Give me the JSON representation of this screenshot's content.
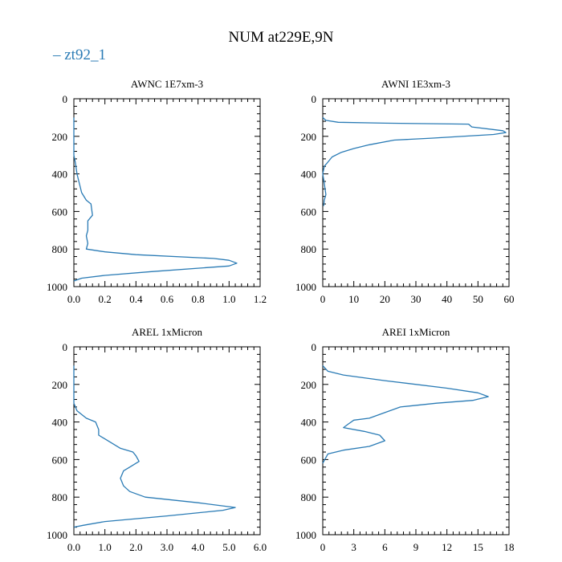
{
  "title": "NUM at229E,9N",
  "legend": {
    "label": "zt92_1",
    "color": "#2a7bb5"
  },
  "chart_data": [
    {
      "type": "line",
      "title": "AWNC  1E7xm-3",
      "xlim": [
        0,
        1.2
      ],
      "ylim": [
        1000,
        0
      ],
      "xticks": [
        0,
        0.2,
        0.4,
        0.6,
        0.8,
        1.0,
        1.2
      ],
      "xtick_labels": [
        "0.0",
        "0.2",
        "0.4",
        "0.6",
        "0.8",
        "1.0",
        "1.2"
      ],
      "yticks": [
        0,
        200,
        400,
        600,
        800,
        1000
      ],
      "ytick_labels": [
        "0",
        "200",
        "400",
        "600",
        "800",
        "1000"
      ],
      "series": [
        {
          "x": [
            0,
            0,
            0.01,
            0.02,
            0.05,
            0.08,
            0.11,
            0.12,
            0.09,
            0.09,
            0.08,
            0.09,
            0.08,
            0.2,
            0.4,
            0.9,
            1.0,
            1.05,
            1.0,
            0.5,
            0.2,
            0.05,
            0
          ],
          "y": [
            100,
            300,
            340,
            400,
            500,
            540,
            560,
            620,
            650,
            700,
            730,
            770,
            800,
            815,
            830,
            850,
            860,
            875,
            890,
            920,
            940,
            955,
            970
          ]
        }
      ]
    },
    {
      "type": "line",
      "title": "AWNI  1E3xm-3",
      "xlim": [
        0,
        60
      ],
      "ylim": [
        1000,
        0
      ],
      "xticks": [
        0,
        10,
        20,
        30,
        40,
        50,
        60
      ],
      "xtick_labels": [
        "0",
        "10",
        "20",
        "30",
        "40",
        "50",
        "60"
      ],
      "yticks": [
        0,
        200,
        400,
        600,
        800,
        1000
      ],
      "ytick_labels": [
        "0",
        "200",
        "400",
        "600",
        "800",
        "1000"
      ],
      "series": [
        {
          "x": [
            0,
            1,
            5,
            20,
            47,
            48,
            58,
            59,
            55,
            35,
            23,
            15,
            10,
            6,
            3,
            1.5,
            0.5,
            0,
            0.5,
            1,
            0.5,
            0.3
          ],
          "y": [
            100,
            115,
            125,
            130,
            135,
            150,
            170,
            180,
            190,
            210,
            220,
            245,
            265,
            285,
            310,
            340,
            360,
            400,
            450,
            510,
            540,
            570
          ]
        }
      ]
    },
    {
      "type": "line",
      "title": "AREL  1xMicron",
      "xlim": [
        0,
        6
      ],
      "ylim": [
        1000,
        0
      ],
      "xticks": [
        0,
        1,
        2,
        3,
        4,
        5,
        6
      ],
      "xtick_labels": [
        "0.0",
        "1.0",
        "2.0",
        "3.0",
        "4.0",
        "5.0",
        "6.0"
      ],
      "yticks": [
        0,
        200,
        400,
        600,
        800,
        1000
      ],
      "ytick_labels": [
        "0",
        "200",
        "400",
        "600",
        "800",
        "1000"
      ],
      "series": [
        {
          "x": [
            0,
            0,
            0.1,
            0.4,
            0.7,
            0.8,
            0.8,
            1.0,
            1.5,
            1.9,
            2.0,
            2.1,
            1.8,
            1.6,
            1.5,
            1.6,
            1.8,
            2.3,
            4.0,
            5.2,
            4.8,
            3.0,
            1.0,
            0.3,
            0
          ],
          "y": [
            100,
            300,
            340,
            380,
            400,
            440,
            470,
            490,
            540,
            560,
            580,
            610,
            640,
            660,
            700,
            740,
            770,
            800,
            830,
            855,
            870,
            900,
            930,
            950,
            960
          ]
        }
      ]
    },
    {
      "type": "line",
      "title": "AREI  1xMicron",
      "xlim": [
        0,
        18
      ],
      "ylim": [
        1000,
        0
      ],
      "xticks": [
        0,
        3,
        6,
        9,
        12,
        15,
        18
      ],
      "xtick_labels": [
        "0",
        "3",
        "6",
        "9",
        "12",
        "15",
        "18"
      ],
      "yticks": [
        0,
        200,
        400,
        600,
        800,
        1000
      ],
      "ytick_labels": [
        "0",
        "200",
        "400",
        "600",
        "800",
        "1000"
      ],
      "series": [
        {
          "x": [
            0,
            0.5,
            2,
            6,
            12,
            15,
            16,
            14.5,
            11,
            7.5,
            6,
            4.5,
            3,
            2.5,
            2,
            4,
            5.5,
            6,
            4.5,
            2,
            0.5,
            0
          ],
          "y": [
            100,
            130,
            150,
            180,
            220,
            245,
            265,
            285,
            300,
            320,
            350,
            380,
            390,
            410,
            430,
            450,
            470,
            500,
            530,
            550,
            570,
            620
          ]
        }
      ]
    }
  ]
}
